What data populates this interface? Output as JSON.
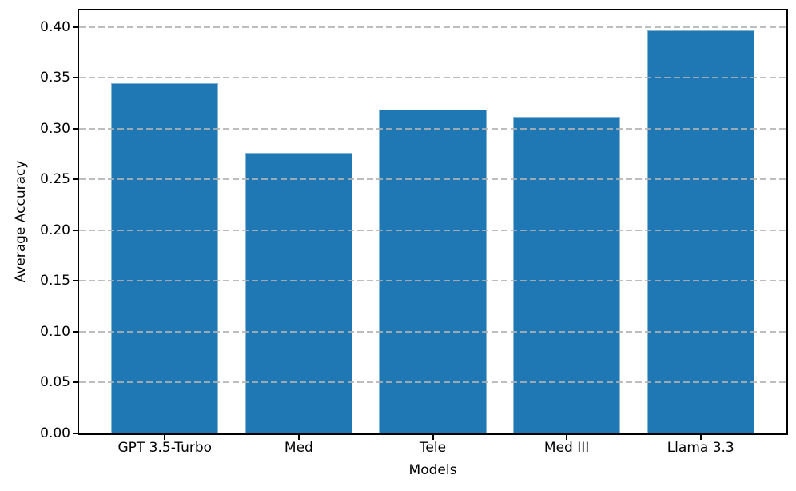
{
  "chart_data": {
    "type": "bar",
    "title": "",
    "xlabel": "Models",
    "ylabel": "Average Accuracy",
    "categories": [
      "GPT 3.5-Turbo",
      "Med",
      "Tele",
      "Med III",
      "Llama 3.3"
    ],
    "values": [
      0.345,
      0.276,
      0.319,
      0.312,
      0.397
    ],
    "yticks": [
      0.0,
      0.05,
      0.1,
      0.15,
      0.2,
      0.25,
      0.3,
      0.35,
      0.4
    ],
    "ytick_labels": [
      "0.00",
      "0.05",
      "0.10",
      "0.15",
      "0.20",
      "0.25",
      "0.30",
      "0.35",
      "0.40"
    ],
    "ylim": [
      0,
      0.4165
    ],
    "bar_color": "#1f77b4",
    "bar_edge_color": "#cfe3f1",
    "grid": "horizontal dashed, drawn above bars",
    "gridline_color": "#b2b2b2",
    "spine_color": "#000000",
    "legend": "none",
    "background_color": "#ffffff"
  }
}
